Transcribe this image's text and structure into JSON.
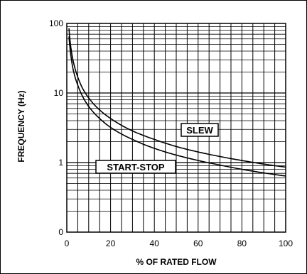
{
  "chart_data": {
    "type": "line",
    "title": "",
    "xlabel": "% OF RATED FLOW",
    "ylabel": "FREQUENCY (Hz)",
    "xlim": [
      0,
      100
    ],
    "ylim": [
      0.1,
      100
    ],
    "yscale": "log",
    "x_ticks": [
      0,
      20,
      40,
      60,
      80,
      100
    ],
    "x_tick_labels": [
      "0",
      "20",
      "40",
      "60",
      "80",
      "100"
    ],
    "y_ticks": [
      0.1,
      1,
      10,
      100
    ],
    "y_tick_labels": [
      "0",
      "1",
      "10",
      "100"
    ],
    "grid": true,
    "series": [
      {
        "name": "SLEW",
        "x": [
          1,
          2,
          3,
          5,
          7,
          10,
          15,
          20,
          30,
          40,
          50,
          60,
          70,
          80,
          90,
          100
        ],
        "y": [
          85,
          42,
          28,
          17,
          12,
          8.5,
          5.7,
          4.3,
          2.85,
          2.15,
          1.7,
          1.42,
          1.22,
          1.07,
          0.95,
          0.86
        ]
      },
      {
        "name": "START-STOP",
        "x": [
          1,
          2,
          3,
          5,
          7,
          10,
          15,
          20,
          30,
          40,
          50,
          60,
          70,
          80,
          90,
          100
        ],
        "y": [
          65,
          32,
          21,
          13,
          9.2,
          6.4,
          4.3,
          3.2,
          2.15,
          1.6,
          1.28,
          1.07,
          0.92,
          0.8,
          0.71,
          0.64
        ]
      }
    ]
  }
}
